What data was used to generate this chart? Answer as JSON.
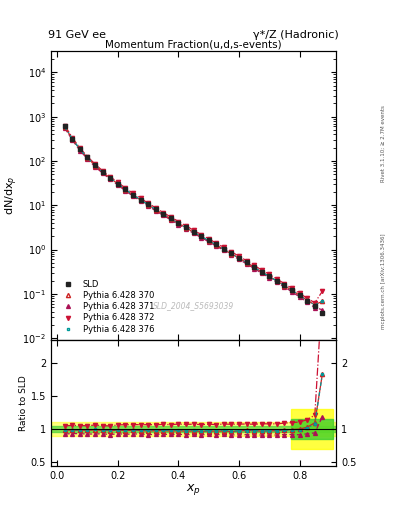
{
  "title_left": "91 GeV ee",
  "title_right": "γ*/Z (Hadronic)",
  "plot_title": "Momentum Fraction(u,d,s-events)",
  "ylabel_main": "dN/dx$_p$",
  "ylabel_ratio": "Ratio to SLD",
  "xlabel": "$x_p$",
  "watermark": "SLD_2004_S5693039",
  "right_label_top": "Rivet 3.1.10; ≥ 2.7M events",
  "right_label_bot": "mcplots.cern.ch [arXiv:1306.3436]",
  "xp": [
    0.025,
    0.05,
    0.075,
    0.1,
    0.125,
    0.15,
    0.175,
    0.2,
    0.225,
    0.25,
    0.275,
    0.3,
    0.325,
    0.35,
    0.375,
    0.4,
    0.425,
    0.45,
    0.475,
    0.5,
    0.525,
    0.55,
    0.575,
    0.6,
    0.625,
    0.65,
    0.675,
    0.7,
    0.725,
    0.75,
    0.775,
    0.8,
    0.825,
    0.85,
    0.875
  ],
  "sld_y": [
    600,
    320,
    185,
    120,
    80,
    57,
    42,
    31,
    23,
    17.5,
    13.5,
    10.5,
    8.2,
    6.4,
    5.1,
    4.0,
    3.2,
    2.55,
    2.05,
    1.63,
    1.31,
    1.04,
    0.83,
    0.66,
    0.52,
    0.41,
    0.32,
    0.255,
    0.2,
    0.156,
    0.121,
    0.093,
    0.07,
    0.052,
    0.037
  ],
  "p370_y": [
    590,
    315,
    182,
    118,
    79,
    56,
    41,
    30.5,
    22.5,
    17.2,
    13.2,
    10.2,
    8.0,
    6.25,
    4.95,
    3.9,
    3.1,
    2.48,
    1.98,
    1.58,
    1.27,
    1.01,
    0.8,
    0.64,
    0.51,
    0.4,
    0.31,
    0.248,
    0.195,
    0.154,
    0.12,
    0.093,
    0.072,
    0.057,
    0.068
  ],
  "p371_y": [
    555,
    298,
    172,
    111,
    74,
    53,
    38.5,
    28.8,
    21.2,
    16.2,
    12.5,
    9.6,
    7.55,
    5.9,
    4.68,
    3.68,
    2.93,
    2.34,
    1.87,
    1.5,
    1.2,
    0.955,
    0.757,
    0.602,
    0.476,
    0.374,
    0.291,
    0.232,
    0.182,
    0.143,
    0.111,
    0.085,
    0.065,
    0.049,
    0.044
  ],
  "p372_y": [
    630,
    338,
    195,
    126,
    85,
    60,
    44,
    33,
    24.5,
    18.7,
    14.4,
    11.2,
    8.75,
    6.85,
    5.45,
    4.3,
    3.43,
    2.74,
    2.19,
    1.75,
    1.4,
    1.12,
    0.89,
    0.71,
    0.56,
    0.44,
    0.346,
    0.275,
    0.216,
    0.17,
    0.133,
    0.103,
    0.08,
    0.063,
    0.115
  ],
  "p376_y": [
    592,
    317,
    183,
    119,
    79.5,
    56.5,
    41.2,
    30.7,
    22.7,
    17.3,
    13.3,
    10.3,
    8.05,
    6.3,
    5.0,
    3.93,
    3.13,
    2.5,
    1.99,
    1.59,
    1.28,
    1.02,
    0.805,
    0.642,
    0.508,
    0.4,
    0.311,
    0.248,
    0.195,
    0.153,
    0.12,
    0.092,
    0.071,
    0.056,
    0.068
  ],
  "color_sld": "#222222",
  "color_370": "#cc2222",
  "color_371": "#aa1155",
  "color_372": "#cc1133",
  "color_376": "#009999",
  "legend_labels": [
    "SLD",
    "Pythia 6.428 370",
    "Pythia 6.428 371",
    "Pythia 6.428 372",
    "Pythia 6.428 376"
  ],
  "ylim_main": [
    0.009,
    30000
  ],
  "ylim_ratio": [
    0.44,
    2.35
  ],
  "xlim": [
    -0.02,
    0.92
  ]
}
